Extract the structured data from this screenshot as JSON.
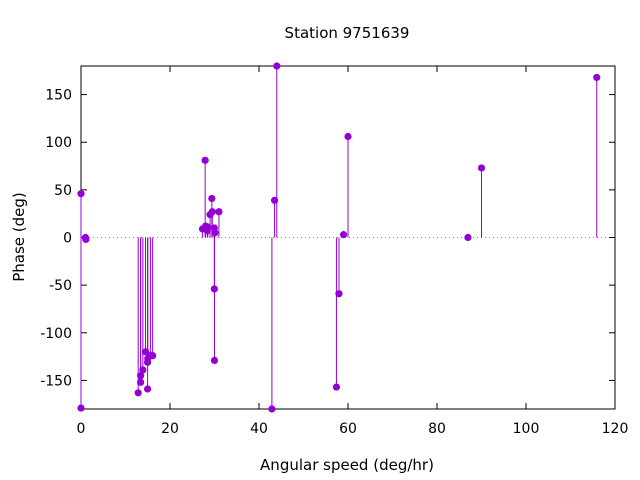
{
  "chart_data": {
    "type": "scatter",
    "style": "impulses-with-points",
    "title": "Station 9751639",
    "xlabel": "Angular speed (deg/hr)",
    "ylabel": "Phase (deg)",
    "xlim": [
      0,
      120
    ],
    "ylim": [
      -180,
      180
    ],
    "xticks": [
      0,
      20,
      40,
      60,
      80,
      100,
      120
    ],
    "yticks": [
      -150,
      -100,
      -50,
      0,
      50,
      100,
      150
    ],
    "zero_line": "dotted",
    "color": "#9400D3",
    "points": [
      {
        "x": 0.0,
        "y": 46
      },
      {
        "x": 0.0,
        "y": -179
      },
      {
        "x": 1.0,
        "y": 0
      },
      {
        "x": 1.1,
        "y": -2
      },
      {
        "x": 12.85,
        "y": -163
      },
      {
        "x": 13.4,
        "y": -152
      },
      {
        "x": 13.4,
        "y": -145
      },
      {
        "x": 13.9,
        "y": -139
      },
      {
        "x": 14.5,
        "y": -120
      },
      {
        "x": 14.96,
        "y": -159
      },
      {
        "x": 14.96,
        "y": -131
      },
      {
        "x": 15.0,
        "y": -127
      },
      {
        "x": 15.6,
        "y": -124
      },
      {
        "x": 16.1,
        "y": -124
      },
      {
        "x": 27.3,
        "y": 9
      },
      {
        "x": 27.9,
        "y": 81
      },
      {
        "x": 28.0,
        "y": 12
      },
      {
        "x": 28.4,
        "y": 7
      },
      {
        "x": 28.5,
        "y": 11
      },
      {
        "x": 29.0,
        "y": 24
      },
      {
        "x": 29.4,
        "y": 41
      },
      {
        "x": 29.5,
        "y": 27
      },
      {
        "x": 29.96,
        "y": 10
      },
      {
        "x": 29.96,
        "y": -54
      },
      {
        "x": 30.0,
        "y": -129
      },
      {
        "x": 30.1,
        "y": 5
      },
      {
        "x": 31.0,
        "y": 27
      },
      {
        "x": 42.9,
        "y": -180
      },
      {
        "x": 43.5,
        "y": 39
      },
      {
        "x": 44.0,
        "y": 180
      },
      {
        "x": 57.4,
        "y": -157
      },
      {
        "x": 57.97,
        "y": -59
      },
      {
        "x": 59.0,
        "y": 3
      },
      {
        "x": 60.0,
        "y": 106
      },
      {
        "x": 86.95,
        "y": 0
      },
      {
        "x": 90.0,
        "y": 73
      },
      {
        "x": 115.9,
        "y": 168
      }
    ]
  }
}
